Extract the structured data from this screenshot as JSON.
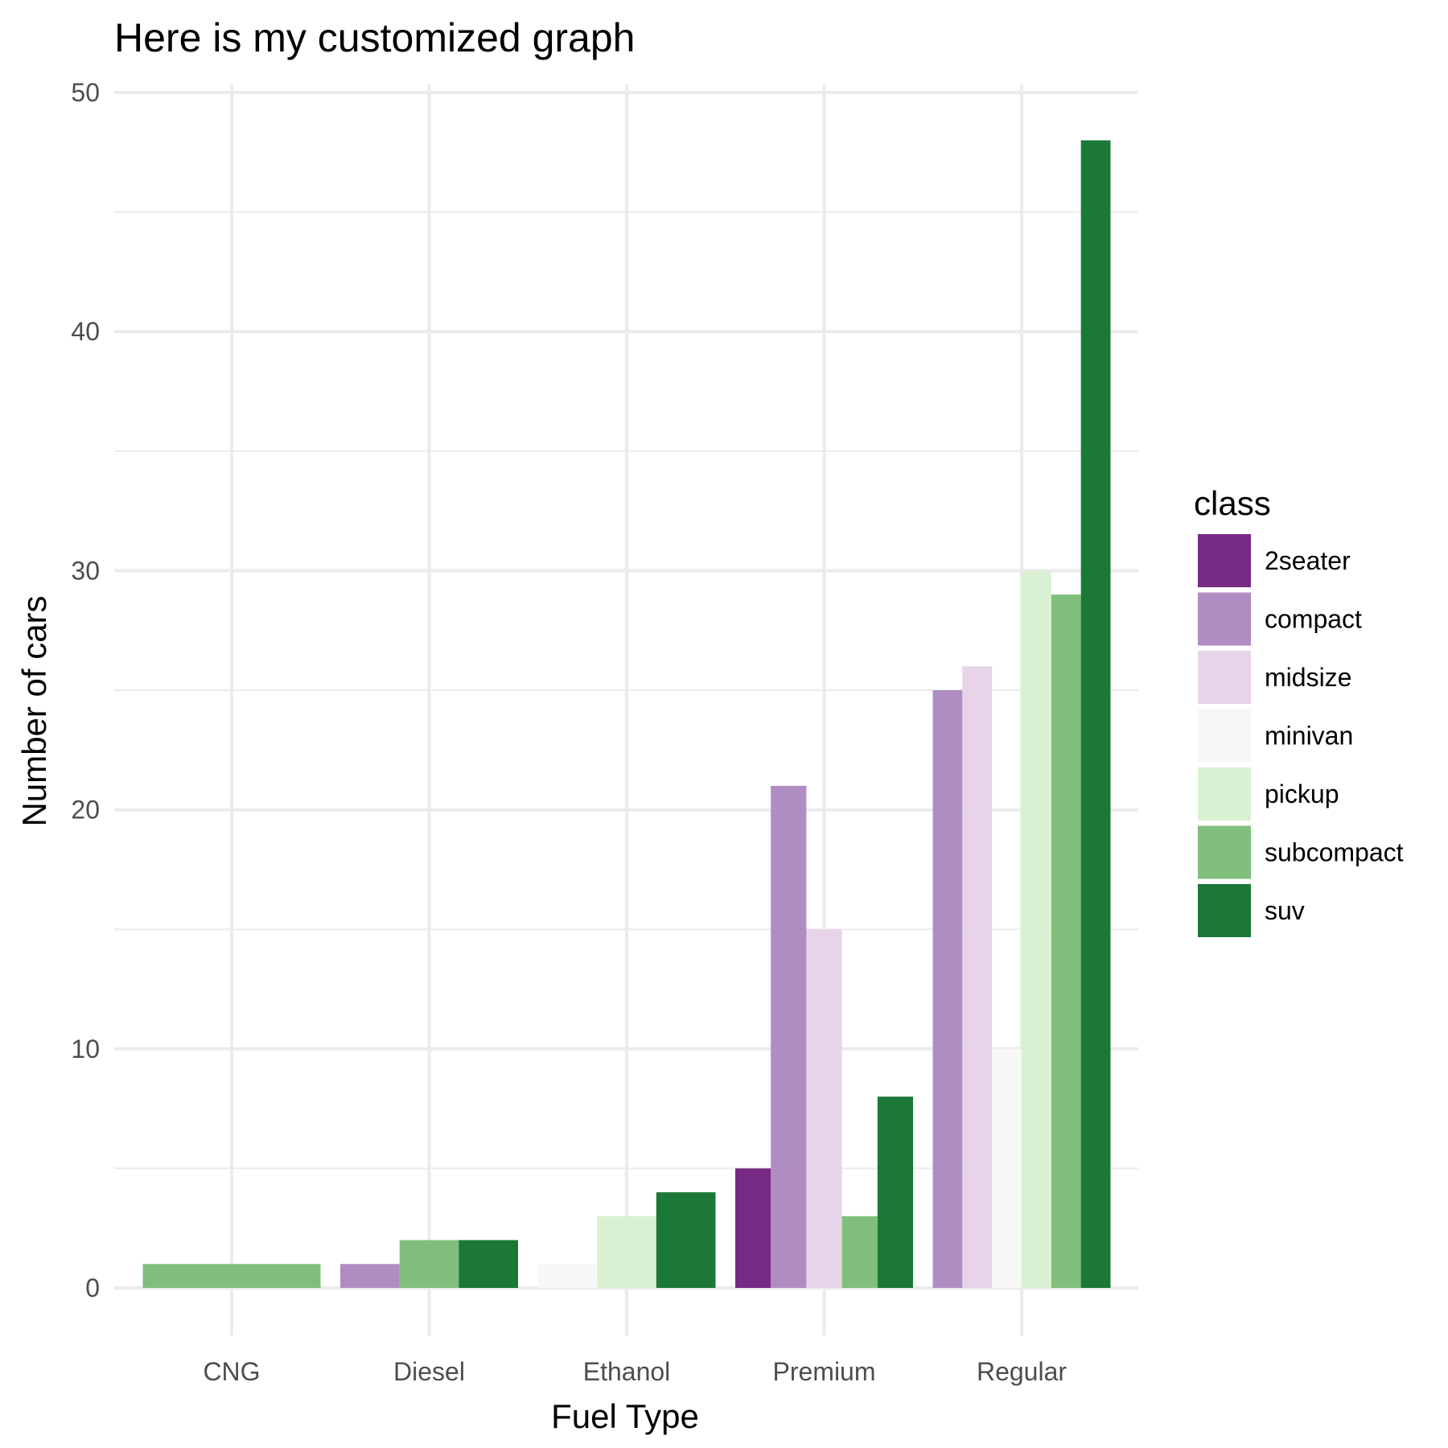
{
  "chart_data": {
    "type": "bar",
    "title": "Here is my customized graph",
    "xlabel": "Fuel Type",
    "ylabel": "Number of cars",
    "categories": [
      "CNG",
      "Diesel",
      "Ethanol",
      "Premium",
      "Regular"
    ],
    "ylim": [
      0,
      50
    ],
    "y_ticks": [
      "0",
      "10",
      "20",
      "30",
      "40",
      "50"
    ],
    "grid": true,
    "legend": {
      "title": "class",
      "placement": "right",
      "items": [
        "2seater",
        "compact",
        "midsize",
        "minivan",
        "pickup",
        "subcompact",
        "suv"
      ]
    },
    "colors": {
      "2seater": "#762a83",
      "compact": "#af8dc3",
      "midsize": "#e7d4e8",
      "minivan": "#f7f7f7",
      "pickup": "#d9f0d3",
      "subcompact": "#7fbf7b",
      "suv": "#1b7837"
    },
    "groups": [
      {
        "category": "CNG",
        "bars": [
          {
            "class": "subcompact",
            "value": 1
          }
        ]
      },
      {
        "category": "Diesel",
        "bars": [
          {
            "class": "compact",
            "value": 1
          },
          {
            "class": "subcompact",
            "value": 2
          },
          {
            "class": "suv",
            "value": 2
          }
        ]
      },
      {
        "category": "Ethanol",
        "bars": [
          {
            "class": "minivan",
            "value": 1
          },
          {
            "class": "pickup",
            "value": 3
          },
          {
            "class": "suv",
            "value": 4
          }
        ]
      },
      {
        "category": "Premium",
        "bars": [
          {
            "class": "2seater",
            "value": 5
          },
          {
            "class": "compact",
            "value": 21
          },
          {
            "class": "midsize",
            "value": 15
          },
          {
            "class": "subcompact",
            "value": 3
          },
          {
            "class": "suv",
            "value": 8
          }
        ]
      },
      {
        "category": "Regular",
        "bars": [
          {
            "class": "compact",
            "value": 25
          },
          {
            "class": "midsize",
            "value": 26
          },
          {
            "class": "minivan",
            "value": 10
          },
          {
            "class": "pickup",
            "value": 30
          },
          {
            "class": "subcompact",
            "value": 29
          },
          {
            "class": "suv",
            "value": 48
          }
        ]
      }
    ]
  }
}
